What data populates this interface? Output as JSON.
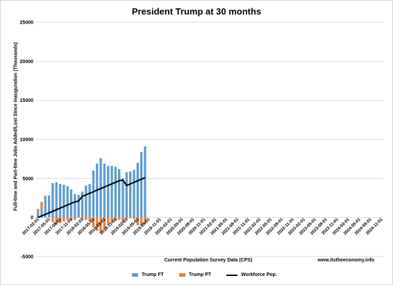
{
  "chart_data": {
    "type": "bar",
    "title": "President Trump at 30 months",
    "xlabel": "Current Population Survey Data (CPS)",
    "ylabel": "Full-time and Part-time Jobs Added/Lost Since Inauguration (Thousands)",
    "source": "www.itstheeconomy.info",
    "ylim": [
      -5000,
      25000
    ],
    "yticks": [
      -5000,
      0,
      5000,
      10000,
      15000,
      20000,
      25000
    ],
    "grid": true,
    "legend_position": "bottom",
    "x_tick_labels": [
      "2017-02-01",
      "2017-05-01",
      "2017-08-01",
      "2017-11-01",
      "2018-02-01",
      "2018-05-01",
      "2018-08-01",
      "2018-11-01",
      "2019-02-01",
      "2019-05-01",
      "2019-08-01",
      "2019-11-01",
      "2020-02-01",
      "2020-05-01",
      "2020-08-01",
      "2020-11-01",
      "2021-02-01",
      "2021-05-01",
      "2021-08-01",
      "2021-11-01",
      "2022-02-01",
      "2022-05-01",
      "2022-08-01",
      "2022-11-01",
      "2023-02-01",
      "2023-05-01",
      "2023-08-01",
      "2023-11-01",
      "2024-02-01",
      "2024-05-01",
      "2024-08-01",
      "2024-11-01"
    ],
    "categories": [
      "2017-02-01",
      "2017-03-01",
      "2017-04-01",
      "2017-05-01",
      "2017-06-01",
      "2017-07-01",
      "2017-08-01",
      "2017-09-01",
      "2017-10-01",
      "2017-11-01",
      "2017-12-01",
      "2018-01-01",
      "2018-02-01",
      "2018-03-01",
      "2018-04-01",
      "2018-05-01",
      "2018-06-01",
      "2018-07-01",
      "2018-08-01",
      "2018-09-01",
      "2018-10-01",
      "2018-11-01",
      "2018-12-01",
      "2019-01-01",
      "2019-02-01",
      "2019-03-01",
      "2019-04-01",
      "2019-05-01",
      "2019-06-01",
      "2019-07-01"
    ],
    "series": [
      {
        "name": "Trump FT",
        "type": "bar",
        "color": "#5B9BD5",
        "values": [
          600,
          1100,
          2600,
          2800,
          4400,
          4500,
          4300,
          4200,
          4000,
          3600,
          3000,
          2900,
          3300,
          4100,
          4300,
          6000,
          6900,
          7600,
          6900,
          6600,
          6600,
          6500,
          6200,
          5000,
          5800,
          5900,
          6100,
          7000,
          8400,
          9100
        ]
      },
      {
        "name": "Trump PT",
        "type": "bar",
        "color": "#ED7D31",
        "values": [
          500,
          900,
          200,
          0,
          -600,
          -900,
          -700,
          -500,
          -300,
          -400,
          -300,
          0,
          -200,
          -300,
          -500,
          -1200,
          -1700,
          -2000,
          -1500,
          -900,
          -700,
          -400,
          -300,
          -700,
          -200,
          -100,
          -200,
          -1000,
          -1000,
          -800
        ]
      },
      {
        "name": "Workforce Pop.",
        "type": "line",
        "color": "#000000",
        "values": [
          0,
          200,
          400,
          600,
          800,
          1000,
          1200,
          1400,
          1600,
          1800,
          2000,
          2100,
          2700,
          2900,
          3100,
          3300,
          3500,
          3700,
          3900,
          4100,
          4300,
          4500,
          4700,
          4800,
          4100,
          4300,
          4500,
          4700,
          4900,
          5100
        ]
      }
    ]
  }
}
